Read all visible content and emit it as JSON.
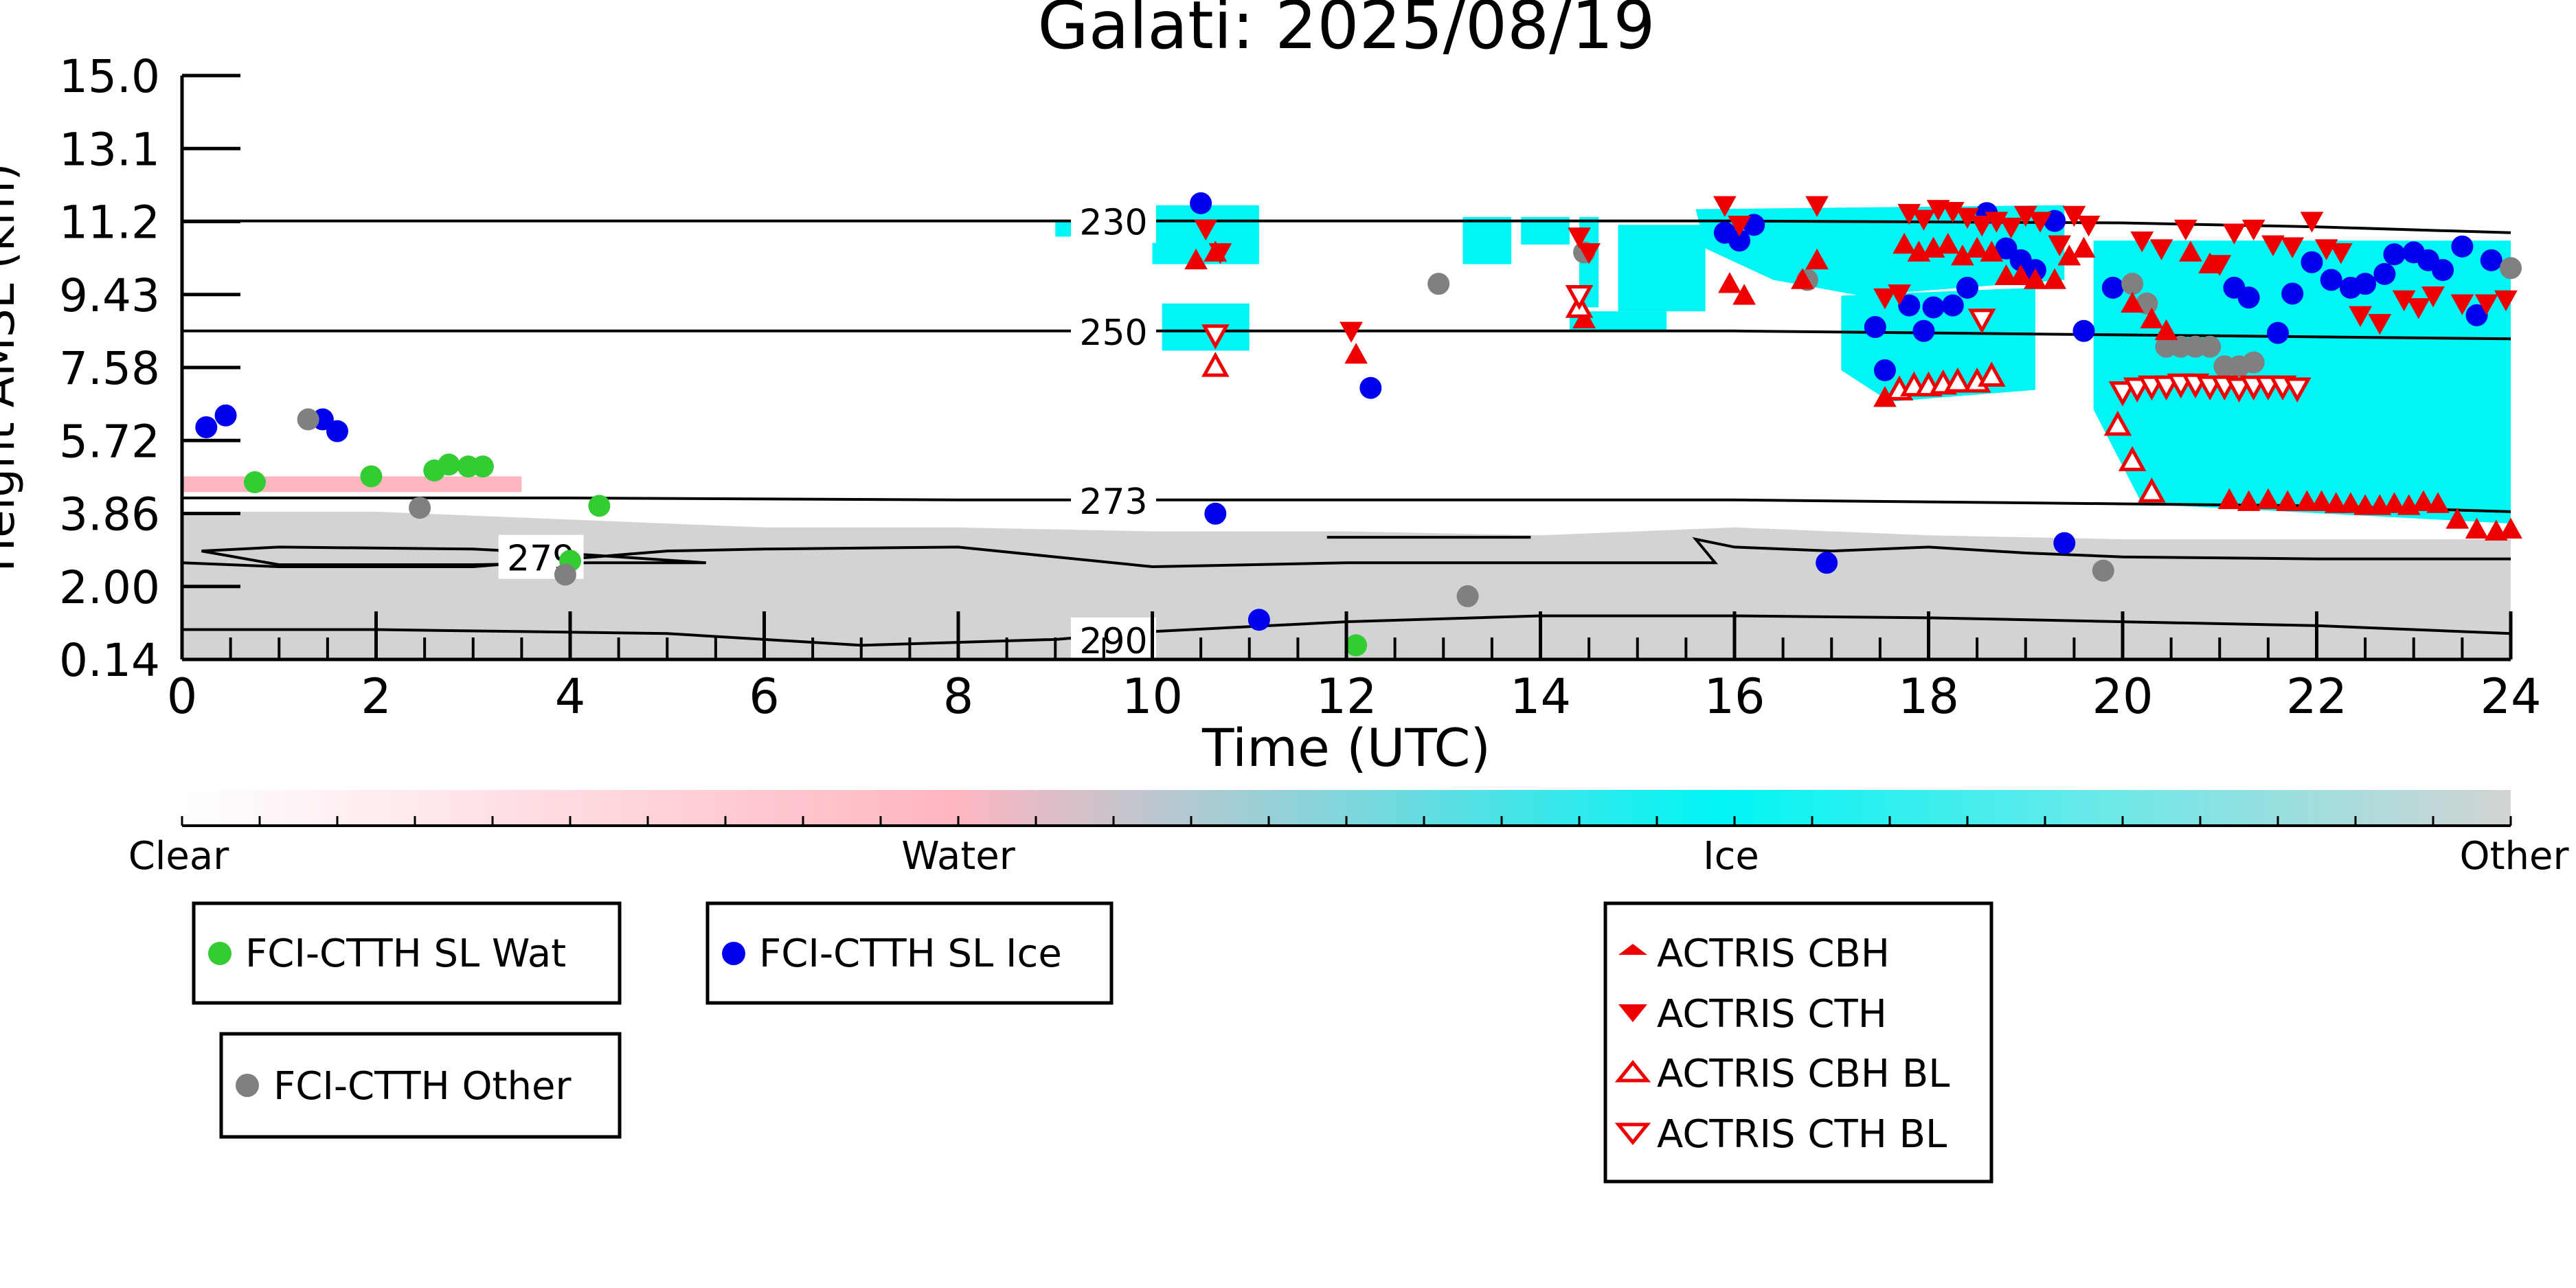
{
  "chart_data": {
    "type": "scatter",
    "title": "Galati: 2025/08/19",
    "xlabel": "Time (UTC)",
    "ylabel": "Height AMSL (km)",
    "xlim": [
      0,
      24
    ],
    "ylim": [
      0.14,
      15.0
    ],
    "x_ticks": [
      "0",
      "2",
      "4",
      "6",
      "8",
      "10",
      "12",
      "14",
      "16",
      "18",
      "20",
      "22",
      "24"
    ],
    "y_ticks": [
      "0.14",
      "2.00",
      "3.86",
      "5.72",
      "7.58",
      "9.43",
      "11.2",
      "13.1",
      "15.0"
    ],
    "grid": false,
    "colorbar": {
      "labels": [
        "Clear",
        "Water",
        "Ice",
        "Other"
      ],
      "colors": [
        "#ffffff",
        "#ffb6c1",
        "#00f5f5",
        "#d3d3d3"
      ]
    },
    "isotherms": [
      {
        "label": "230",
        "x": [
          0,
          4,
          8,
          12,
          16,
          20,
          22,
          24
        ],
        "y": [
          11.3,
          11.3,
          11.3,
          11.3,
          11.3,
          11.25,
          11.15,
          11.0
        ]
      },
      {
        "label": "250",
        "x": [
          0,
          4,
          8,
          12,
          16,
          20,
          22,
          24
        ],
        "y": [
          8.5,
          8.5,
          8.5,
          8.5,
          8.5,
          8.4,
          8.35,
          8.3
        ]
      },
      {
        "label": "273",
        "x": [
          0,
          4,
          8,
          12,
          16,
          20,
          22,
          24
        ],
        "y": [
          4.25,
          4.25,
          4.2,
          4.2,
          4.2,
          4.1,
          4.05,
          3.9
        ]
      },
      {
        "label": "279",
        "x": [
          0.2,
          1,
          3,
          4.2,
          5.4,
          4.2,
          3,
          1,
          0.2
        ],
        "y": [
          2.9,
          3.0,
          2.95,
          2.8,
          2.6,
          2.6,
          2.55,
          2.55,
          2.9
        ]
      },
      {
        "label": "",
        "x": [
          0,
          1,
          3,
          5,
          6,
          8,
          10,
          12,
          14,
          15.8,
          15.6,
          16,
          17,
          18,
          19,
          20,
          22,
          24
        ],
        "y": [
          2.6,
          2.5,
          2.5,
          2.9,
          2.95,
          3.0,
          2.5,
          2.6,
          2.6,
          2.6,
          3.2,
          3.0,
          2.9,
          3.0,
          2.85,
          2.75,
          2.7,
          2.7
        ]
      },
      {
        "label": "",
        "x": [
          11.8,
          13.9
        ],
        "y": [
          3.25,
          3.25
        ]
      },
      {
        "label": "290",
        "x": [
          0,
          2,
          5,
          7,
          9,
          10,
          12,
          14,
          16,
          18,
          20,
          22,
          24
        ],
        "y": [
          0.9,
          0.9,
          0.8,
          0.5,
          0.65,
          0.85,
          1.1,
          1.25,
          1.25,
          1.2,
          1.1,
          1.0,
          0.8
        ]
      }
    ],
    "series": [
      {
        "name": "FCI-CTTH SL Wat",
        "color": "#33cc33",
        "marker": "circle",
        "x": [
          0.75,
          1.95,
          2.6,
          2.75,
          2.95,
          3.1,
          4.0,
          4.3,
          12.1
        ],
        "y": [
          4.65,
          4.8,
          4.95,
          5.1,
          5.05,
          5.05,
          2.65,
          4.05,
          0.5
        ]
      },
      {
        "name": "FCI-CTTH SL Ice",
        "color": "#0000ee",
        "marker": "circle",
        "x": [
          0.25,
          0.45,
          1.45,
          1.6,
          10.5,
          10.65,
          11.1,
          12.25,
          15.9,
          16.05,
          16.2,
          16.95,
          17.45,
          17.55,
          17.8,
          17.95,
          18.05,
          18.25,
          18.4,
          18.6,
          18.8,
          18.95,
          19.1,
          19.3,
          19.4,
          19.6,
          19.9,
          21.15,
          21.3,
          21.6,
          21.75,
          21.95,
          22.15,
          22.35,
          22.5,
          22.7,
          22.8,
          23.0,
          23.15,
          23.3,
          23.5,
          23.65,
          23.8
        ],
        "y": [
          6.05,
          6.35,
          6.25,
          5.95,
          11.75,
          3.85,
          1.15,
          7.05,
          11.0,
          10.8,
          11.2,
          2.6,
          8.6,
          7.5,
          9.15,
          8.5,
          9.1,
          9.15,
          9.6,
          11.5,
          10.6,
          10.3,
          10.05,
          11.3,
          3.1,
          8.5,
          9.6,
          9.6,
          9.35,
          8.45,
          9.45,
          10.25,
          9.8,
          9.6,
          9.7,
          9.95,
          10.45,
          10.5,
          10.3,
          10.05,
          10.65,
          8.9,
          10.3
        ]
      },
      {
        "name": "FCI-CTTH Other",
        "color": "#808080",
        "marker": "circle",
        "x": [
          1.3,
          2.45,
          3.95,
          12.95,
          13.25,
          14.45,
          16.75,
          20.1,
          20.25,
          20.45,
          20.6,
          20.75,
          20.9,
          21.05,
          21.2,
          21.35,
          19.8,
          24.0
        ],
        "y": [
          6.25,
          4.0,
          2.3,
          9.7,
          1.75,
          10.5,
          9.8,
          9.7,
          9.2,
          8.1,
          8.1,
          8.1,
          8.1,
          7.6,
          7.6,
          7.7,
          2.4,
          10.1
        ]
      },
      {
        "name": "ACTRIS CBH",
        "color": "#ee0000",
        "marker": "triangle-up",
        "x": [
          10.45,
          10.65,
          12.1,
          14.45,
          15.95,
          16.1,
          16.7,
          16.85,
          17.55,
          17.75,
          17.9,
          18.05,
          18.2,
          18.35,
          18.5,
          18.65,
          18.8,
          18.95,
          19.1,
          19.3,
          19.45,
          19.6,
          20.1,
          20.3,
          20.45,
          20.7,
          20.9,
          21.1,
          21.3,
          21.5,
          21.7,
          21.9,
          22.05,
          22.2,
          22.35,
          22.5,
          22.65,
          22.8,
          22.95,
          23.1,
          23.25,
          23.45,
          23.65,
          23.85,
          24.0
        ],
        "y": [
          10.3,
          10.5,
          7.9,
          8.8,
          9.7,
          9.4,
          9.8,
          10.3,
          6.8,
          10.7,
          10.5,
          10.6,
          10.7,
          10.4,
          10.6,
          10.5,
          9.9,
          9.9,
          9.8,
          9.8,
          10.4,
          10.6,
          9.2,
          8.8,
          8.5,
          10.5,
          10.2,
          4.2,
          4.15,
          4.2,
          4.15,
          4.15,
          4.15,
          4.1,
          4.1,
          4.05,
          4.05,
          4.1,
          4.05,
          4.15,
          4.1,
          3.7,
          3.45,
          3.4,
          3.45
        ]
      },
      {
        "name": "ACTRIS CTH",
        "color": "#ee0000",
        "marker": "triangle-down",
        "x": [
          10.55,
          10.7,
          12.05,
          14.4,
          14.5,
          15.9,
          16.05,
          16.85,
          17.55,
          17.7,
          17.8,
          17.95,
          18.1,
          18.25,
          18.4,
          18.55,
          18.7,
          18.85,
          19.0,
          19.15,
          19.35,
          19.5,
          19.65,
          20.2,
          20.4,
          20.65,
          21.0,
          21.15,
          21.35,
          21.55,
          21.75,
          21.95,
          22.1,
          22.25,
          22.45,
          22.65,
          22.9,
          23.05,
          23.2,
          23.5,
          23.75,
          23.95
        ],
        "y": [
          11.1,
          10.5,
          8.5,
          10.9,
          10.5,
          11.7,
          11.2,
          11.7,
          9.35,
          9.45,
          11.5,
          11.35,
          11.6,
          11.55,
          11.4,
          11.2,
          11.3,
          11.15,
          11.45,
          11.3,
          10.7,
          11.45,
          11.2,
          10.8,
          10.6,
          11.1,
          10.2,
          11.0,
          11.1,
          10.7,
          10.65,
          11.3,
          10.6,
          10.5,
          8.9,
          8.7,
          9.3,
          9.1,
          9.4,
          9.2,
          9.2,
          9.3
        ]
      },
      {
        "name": "ACTRIS CBH BL",
        "color": "#ee0000",
        "marker": "triangle-up-open",
        "x": [
          10.65,
          14.4,
          17.7,
          17.85,
          18.0,
          18.15,
          18.3,
          18.5,
          18.65,
          19.95,
          20.1,
          20.3
        ],
        "y": [
          7.6,
          9.1,
          7.0,
          7.1,
          7.1,
          7.15,
          7.2,
          7.2,
          7.35,
          6.1,
          5.2,
          4.4
        ]
      },
      {
        "name": "ACTRIS CTH BL",
        "color": "#ee0000",
        "marker": "triangle-down-open",
        "x": [
          10.65,
          14.4,
          18.55,
          20.0,
          20.15,
          20.3,
          20.45,
          20.6,
          20.75,
          20.9,
          21.05,
          21.2,
          21.35,
          21.5,
          21.65,
          21.8
        ],
        "y": [
          8.4,
          9.4,
          8.8,
          6.95,
          7.05,
          7.1,
          7.1,
          7.15,
          7.15,
          7.1,
          7.1,
          7.05,
          7.1,
          7.1,
          7.1,
          7.05
        ]
      }
    ]
  },
  "legend": {
    "wat_label": "FCI-CTTH SL Wat",
    "ice_label": "FCI-CTTH SL Ice",
    "other_label": "FCI-CTTH Other",
    "cbh_label": "ACTRIS CBH",
    "cth_label": "ACTRIS CTH",
    "cbh_bl_label": "ACTRIS CBH BL",
    "cth_bl_label": "ACTRIS CTH BL"
  }
}
